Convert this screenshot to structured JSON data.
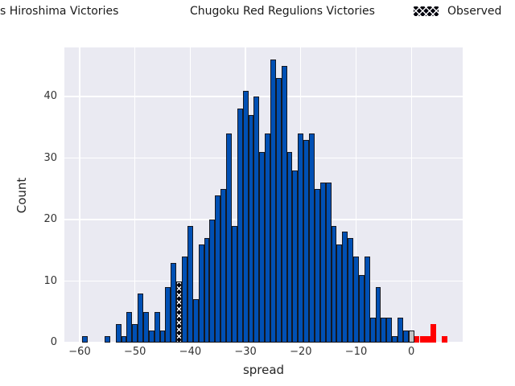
{
  "legend": {
    "items": [
      {
        "label": "s Hiroshima Victories",
        "swatch": "blue-cut-offscreen",
        "color": "#0050b4"
      },
      {
        "label": "Chugoku Red Regulions Victories",
        "swatch": "red-patch",
        "color": "#ff0000"
      },
      {
        "label": "Observed",
        "swatch": "black-x-hatch-patch",
        "color": "#000000"
      }
    ]
  },
  "axes": {
    "xlabel": "spread",
    "ylabel": "Count",
    "xticks": [
      -60,
      -50,
      -40,
      -30,
      -20,
      -10,
      0
    ],
    "yticks": [
      0,
      10,
      20,
      30,
      40
    ],
    "xlim": [
      -62.8,
      9.3
    ],
    "ylim": [
      0,
      48
    ],
    "grid": true,
    "background": "#eaeaf2",
    "gridline_color": "#ffffff"
  },
  "chart_data": {
    "type": "bar",
    "subtype": "histogram",
    "title": "",
    "xlabel": "spread",
    "ylabel": "Count",
    "bin_width": 1,
    "legend_position": "top-horizontal",
    "series": [
      {
        "name": "s Hiroshima Victories",
        "color": "#0050b4",
        "edge_color": "#141821",
        "isolated_bars": [
          {
            "x": -59,
            "count": 1
          },
          {
            "x": -55,
            "count": 1
          }
        ],
        "run_start_x": -53,
        "run_counts": [
          3,
          1,
          5,
          3,
          8,
          5,
          2,
          5,
          2,
          9,
          13,
          null,
          14,
          19,
          7,
          16,
          17,
          20,
          24,
          25,
          34,
          19,
          38,
          41,
          37,
          40,
          31,
          34,
          46,
          43,
          45,
          31,
          28,
          34,
          33,
          34,
          25,
          26,
          26,
          19,
          16,
          18,
          17,
          14,
          11,
          14,
          4,
          9,
          4,
          4,
          1,
          4,
          2
        ]
      },
      {
        "name": "unlabeled-gray",
        "color": "#c3c3c3",
        "edge_color": "#141821",
        "bars": [
          {
            "x": 0,
            "count": 2
          }
        ]
      },
      {
        "name": "Chugoku Red Regulions Victories",
        "color": "#ff0000",
        "bars": [
          {
            "x": 1,
            "count": 1
          },
          {
            "x": 2,
            "count": 1
          },
          {
            "x": 3,
            "count": 1
          },
          {
            "x": 4,
            "count": 3
          },
          {
            "x": 6,
            "count": 1
          }
        ]
      },
      {
        "name": "Observed",
        "color": "#000000",
        "hatch": "xx",
        "hatch_color": "#ffffff",
        "bars": [
          {
            "x": -42,
            "count": 10
          }
        ]
      }
    ]
  }
}
